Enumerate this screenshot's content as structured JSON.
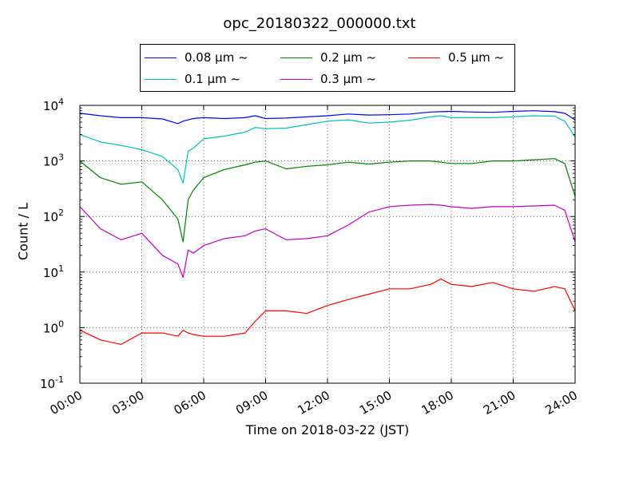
{
  "chart_data": {
    "type": "line",
    "title": "opc_20180322_000000.txt",
    "xlabel": "Time on 2018-03-22 (JST)",
    "ylabel": "Count / L",
    "y_scale": "log",
    "ylim": [
      0.1,
      10000
    ],
    "xlim": [
      "00:00",
      "24:00"
    ],
    "x_ticks": [
      "00:00",
      "03:00",
      "06:00",
      "09:00",
      "12:00",
      "15:00",
      "18:00",
      "21:00",
      "24:00"
    ],
    "y_ticks": [
      {
        "base": "10",
        "exp": "-1"
      },
      {
        "base": "10",
        "exp": "0"
      },
      {
        "base": "10",
        "exp": "1"
      },
      {
        "base": "10",
        "exp": "2"
      },
      {
        "base": "10",
        "exp": "3"
      },
      {
        "base": "10",
        "exp": "4"
      }
    ],
    "grid": true,
    "legend_position": "top-center",
    "x": [
      "00:00",
      "01:00",
      "02:00",
      "03:00",
      "04:00",
      "04:45",
      "05:00",
      "05:15",
      "05:30",
      "06:00",
      "07:00",
      "08:00",
      "08:30",
      "09:00",
      "10:00",
      "11:00",
      "12:00",
      "13:00",
      "14:00",
      "15:00",
      "16:00",
      "17:00",
      "17:30",
      "18:00",
      "19:00",
      "20:00",
      "21:00",
      "22:00",
      "23:00",
      "23:30",
      "24:00"
    ],
    "series": [
      {
        "name": "0.08 μm ~",
        "color": "#0000ff",
        "values": [
          7200,
          6500,
          6000,
          6000,
          5700,
          4700,
          5200,
          5500,
          5800,
          6000,
          5800,
          6000,
          6500,
          5800,
          5900,
          6200,
          6500,
          7000,
          6700,
          6800,
          7000,
          7600,
          7700,
          7800,
          7600,
          7500,
          7800,
          8000,
          7700,
          7200,
          5500
        ]
      },
      {
        "name": "0.1 μm ~",
        "color": "#00bfbf",
        "values": [
          3000,
          2200,
          1900,
          1600,
          1200,
          700,
          400,
          1500,
          1700,
          2500,
          2800,
          3300,
          4000,
          3800,
          3900,
          4500,
          5200,
          5500,
          4800,
          5000,
          5400,
          6200,
          6500,
          6000,
          6000,
          6000,
          6200,
          6500,
          6400,
          5200,
          2700
        ]
      },
      {
        "name": "0.2 μm ~",
        "color": "#008000",
        "values": [
          1000,
          500,
          380,
          420,
          200,
          90,
          35,
          200,
          300,
          500,
          700,
          850,
          950,
          1000,
          720,
          800,
          850,
          950,
          880,
          950,
          1000,
          1000,
          950,
          900,
          900,
          1000,
          1000,
          1050,
          1100,
          900,
          230
        ]
      },
      {
        "name": "0.3 μm ~",
        "color": "#bf00bf",
        "values": [
          150,
          60,
          38,
          50,
          20,
          14,
          8,
          25,
          22,
          30,
          40,
          45,
          55,
          60,
          38,
          40,
          45,
          70,
          120,
          150,
          160,
          165,
          160,
          150,
          140,
          150,
          150,
          155,
          160,
          130,
          35
        ]
      },
      {
        "name": "0.5 μm ~",
        "color": "#ff0000",
        "values": [
          0.9,
          0.6,
          0.5,
          0.8,
          0.8,
          0.7,
          0.9,
          0.8,
          0.75,
          0.7,
          0.7,
          0.8,
          1.3,
          2.0,
          2.0,
          1.8,
          2.5,
          3.2,
          4.0,
          5.0,
          5.0,
          6.0,
          7.5,
          6.0,
          5.5,
          6.5,
          5.0,
          4.5,
          5.5,
          5.0,
          2.0
        ]
      }
    ]
  }
}
